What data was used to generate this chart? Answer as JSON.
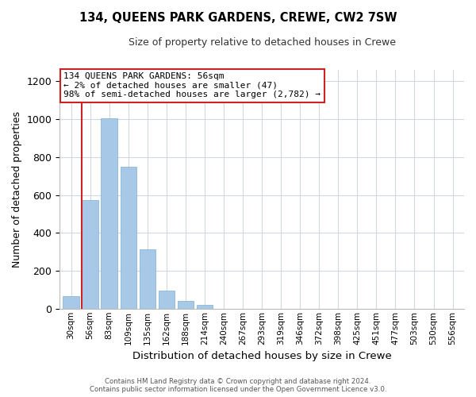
{
  "title": "134, QUEENS PARK GARDENS, CREWE, CW2 7SW",
  "subtitle": "Size of property relative to detached houses in Crewe",
  "xlabel": "Distribution of detached houses by size in Crewe",
  "ylabel": "Number of detached properties",
  "bar_color": "#a8c8e8",
  "bar_edge_color": "#7ab0d4",
  "highlight_color": "#cc2222",
  "bins": [
    "30sqm",
    "56sqm",
    "83sqm",
    "109sqm",
    "135sqm",
    "162sqm",
    "188sqm",
    "214sqm",
    "240sqm",
    "267sqm",
    "293sqm",
    "319sqm",
    "346sqm",
    "372sqm",
    "398sqm",
    "425sqm",
    "451sqm",
    "477sqm",
    "503sqm",
    "530sqm",
    "556sqm"
  ],
  "values": [
    65,
    575,
    1005,
    750,
    315,
    95,
    42,
    18,
    0,
    0,
    0,
    0,
    0,
    0,
    0,
    0,
    0,
    0,
    0,
    0,
    0
  ],
  "highlight_bin_index": 1,
  "annotation_line1": "134 QUEENS PARK GARDENS: 56sqm",
  "annotation_line2": "← 2% of detached houses are smaller (47)",
  "annotation_line3": "98% of semi-detached houses are larger (2,782) →",
  "ylim": [
    0,
    1260
  ],
  "yticks": [
    0,
    200,
    400,
    600,
    800,
    1000,
    1200
  ],
  "footer_line1": "Contains HM Land Registry data © Crown copyright and database right 2024.",
  "footer_line2": "Contains public sector information licensed under the Open Government Licence v3.0."
}
